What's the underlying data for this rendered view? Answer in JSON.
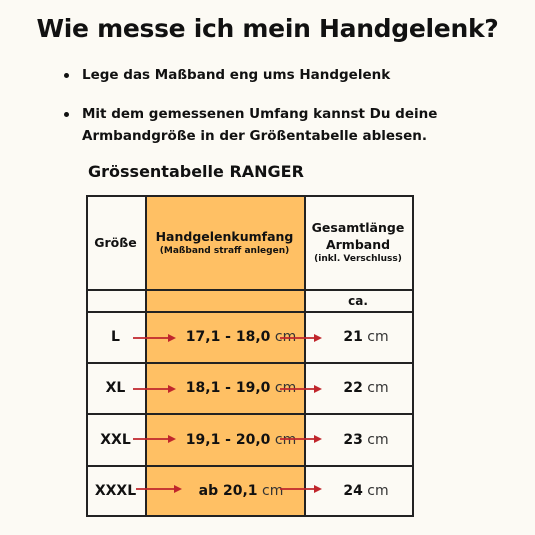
{
  "title": "Wie messe ich mein Handgelenk?",
  "bullets": [
    "Lege das Maßband eng ums Handgelenk",
    "Mit dem gemessenen Umfang kannst Du deine Armbandgröße in der Größentabelle ablesen."
  ],
  "table_title": "Grössentabelle RANGER",
  "headers": {
    "size": "Größe",
    "wrist": "Handgelenkumfang",
    "wrist_sub": "(Maßband straff anlegen)",
    "length_line1": "Gesamtlänge",
    "length_line2": "Armband",
    "length_sub": "(inkl. Verschluss)",
    "length_approx": "ca."
  },
  "rows": [
    {
      "size": "L",
      "wrist": "17,1 - 18,0",
      "wrist_unit": "cm",
      "length": "21",
      "length_unit": "cm"
    },
    {
      "size": "XL",
      "wrist": "18,1 - 19,0",
      "wrist_unit": "cm",
      "length": "22",
      "length_unit": "cm"
    },
    {
      "size": "XXL",
      "wrist": "19,1 - 20,0",
      "wrist_unit": "cm",
      "length": "23",
      "length_unit": "cm"
    },
    {
      "size": "XXXL",
      "wrist": "ab 20,1",
      "wrist_unit": "cm",
      "length": "24",
      "length_unit": "cm"
    }
  ],
  "colors": {
    "background": "#fcfaf4",
    "highlight": "#ffc064",
    "arrow": "#c0262c"
  }
}
